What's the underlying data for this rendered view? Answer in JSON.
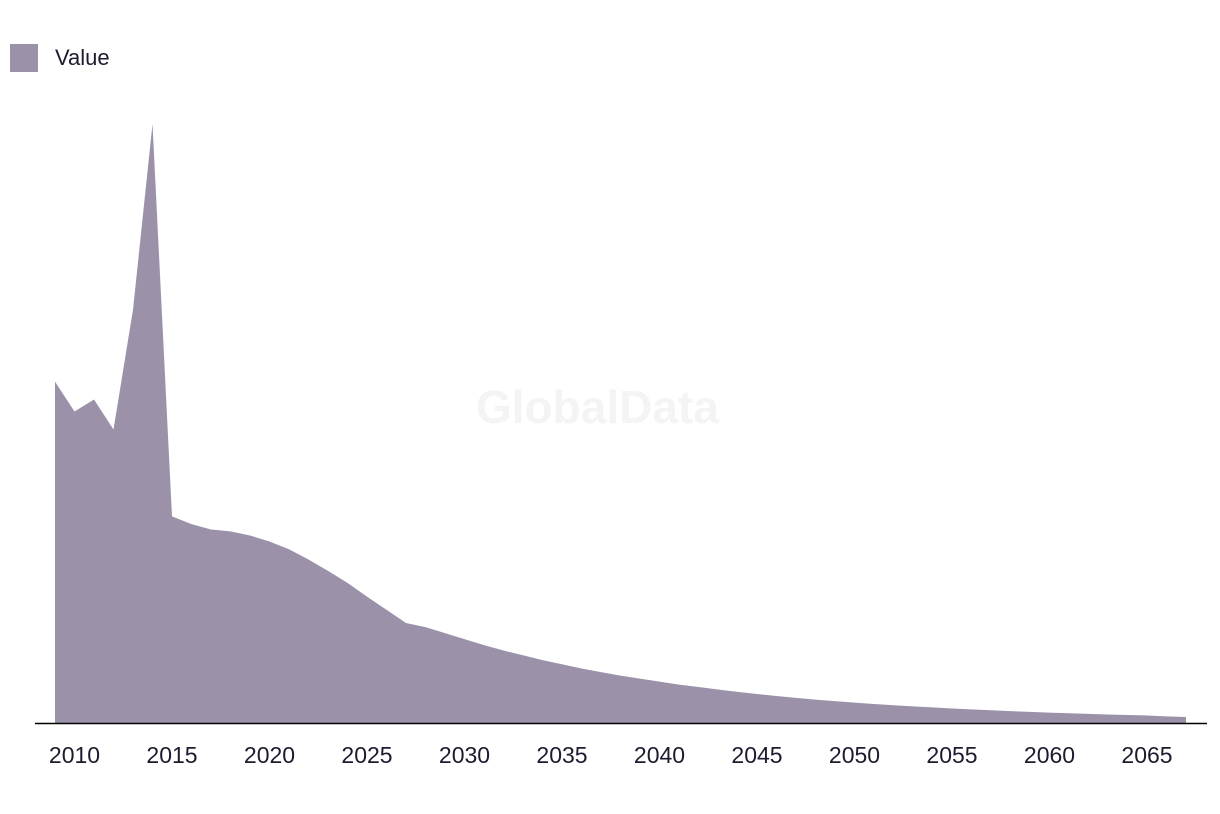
{
  "legend": {
    "label": "Value",
    "color": "#9b92aa"
  },
  "watermark": "GlobalData",
  "colors": {
    "area": "#9b92aa",
    "axis": "#000000",
    "text": "#1f1a2e"
  },
  "chart_data": {
    "type": "area",
    "title": "",
    "xlabel": "",
    "ylabel": "",
    "x_ticks": [
      2010,
      2015,
      2020,
      2025,
      2030,
      2035,
      2040,
      2045,
      2050,
      2055,
      2060,
      2065
    ],
    "xlim": [
      2009,
      2067
    ],
    "ylim": [
      0,
      100
    ],
    "grid": false,
    "legend_position": "top-left",
    "series": [
      {
        "name": "Value",
        "x": [
          2009,
          2010,
          2011,
          2012,
          2013,
          2014,
          2015,
          2016,
          2017,
          2018,
          2019,
          2020,
          2021,
          2022,
          2023,
          2024,
          2025,
          2026,
          2027,
          2028,
          2029,
          2030,
          2031,
          2032,
          2033,
          2034,
          2035,
          2036,
          2037,
          2038,
          2039,
          2040,
          2041,
          2042,
          2043,
          2044,
          2045,
          2046,
          2047,
          2048,
          2049,
          2050,
          2051,
          2052,
          2053,
          2054,
          2055,
          2056,
          2057,
          2058,
          2059,
          2060,
          2061,
          2062,
          2063,
          2064,
          2065,
          2066,
          2067
        ],
        "values": [
          57,
          52,
          54,
          49,
          69,
          100,
          34.5,
          33.2,
          32.3,
          32.0,
          31.3,
          30.3,
          29.0,
          27.3,
          25.4,
          23.4,
          21.1,
          18.9,
          16.7,
          16.0,
          15.0,
          14.0,
          13.0,
          12.1,
          11.3,
          10.5,
          9.8,
          9.1,
          8.5,
          7.9,
          7.4,
          6.9,
          6.4,
          6.0,
          5.6,
          5.2,
          4.85,
          4.5,
          4.2,
          3.9,
          3.65,
          3.4,
          3.18,
          2.97,
          2.77,
          2.6,
          2.43,
          2.27,
          2.12,
          1.98,
          1.85,
          1.73,
          1.62,
          1.52,
          1.42,
          1.33,
          1.25,
          1.1,
          1.0
        ]
      }
    ]
  }
}
